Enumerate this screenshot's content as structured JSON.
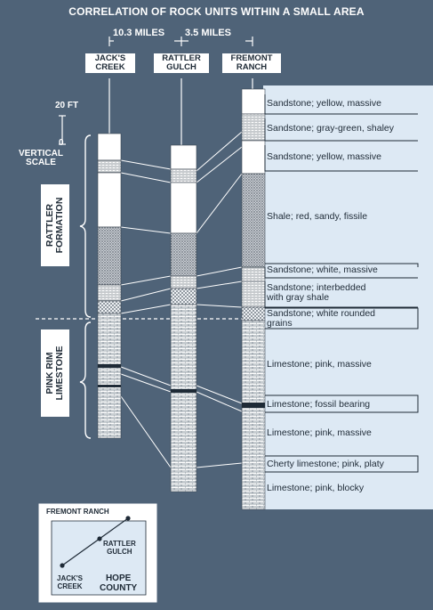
{
  "title": "CORRELATION OF ROCK UNITS WITHIN A SMALL AREA",
  "distances": {
    "first": "10.3 MILES",
    "second": "3.5 MILES"
  },
  "sites": {
    "jacks": [
      "JACK'S",
      "CREEK"
    ],
    "rattler": [
      "RATTLER",
      "GULCH"
    ],
    "fremont": [
      "FREMONT",
      "RANCH"
    ]
  },
  "scale": {
    "top": "20 FT",
    "bottom": "0",
    "label": [
      "VERTICAL",
      "SCALE"
    ]
  },
  "formations": {
    "rattler": [
      "RATTLER",
      "FORMATION"
    ],
    "pinkrim": [
      "PINK RIM",
      "LIMESTONE"
    ]
  },
  "layers": [
    "Sandstone; yellow, massive",
    "Sandstone; gray-green, shaley",
    "Sandstone; yellow, massive",
    "Shale; red, sandy, fissile",
    "Sandstone; white, massive",
    [
      "Sandstone; interbedded",
      "with gray shale"
    ],
    [
      "Sandstone; white rounded",
      "grains"
    ],
    "Limestone; pink, massive",
    "Limestone; fossil bearing",
    "Limestone; pink, massive",
    "Cherty limestone; pink, platy",
    "Limestone; pink, blocky"
  ],
  "map": {
    "fremont": "FREMONT RANCH",
    "rattler": [
      "RATTLER",
      "GULCH"
    ],
    "jacks": [
      "JACK'S",
      "CREEK"
    ],
    "county": [
      "HOPE",
      "COUNTY"
    ]
  },
  "colors": {
    "background": "#4f6378",
    "panel": "#dde9f4",
    "ink": "#1e2a36"
  }
}
